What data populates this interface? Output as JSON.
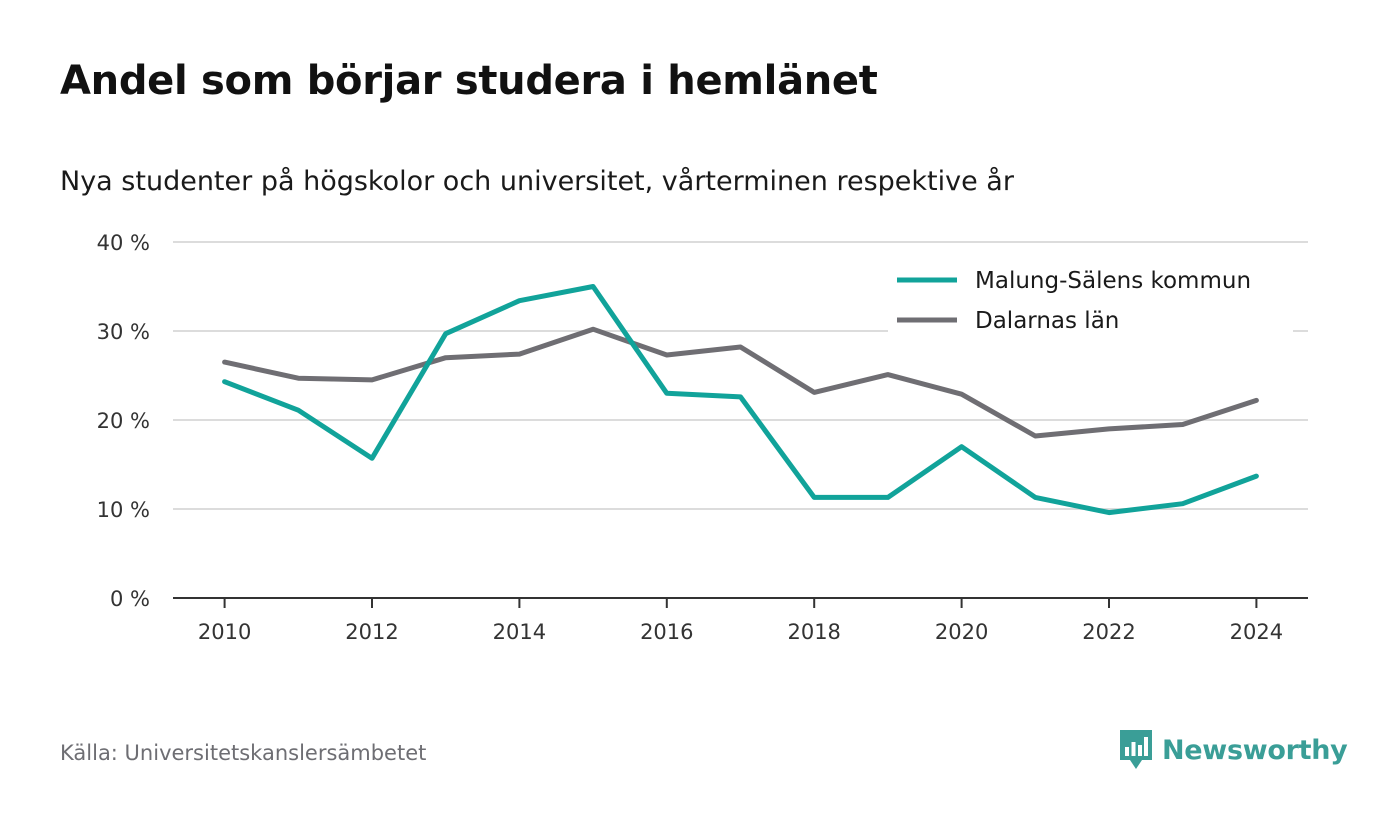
{
  "chart_data": {
    "type": "line",
    "title": "Andel som börjar studera i hemlänet",
    "subtitle": "Nya studenter på högskolor och universitet, vårterminen respektive år",
    "x": [
      2010,
      2011,
      2012,
      2013,
      2014,
      2015,
      2016,
      2017,
      2018,
      2019,
      2020,
      2021,
      2022,
      2023,
      2024
    ],
    "x_ticks": [
      2010,
      2012,
      2014,
      2016,
      2018,
      2020,
      2022,
      2024
    ],
    "x_tick_labels": [
      "2010",
      "2012",
      "2014",
      "2016",
      "2018",
      "2020",
      "2022",
      "2024"
    ],
    "y_ticks": [
      0,
      10,
      20,
      30,
      40
    ],
    "y_tick_labels": [
      "0 %",
      "10 %",
      "20 %",
      "30 %",
      "40 %"
    ],
    "ylim": [
      0,
      40
    ],
    "xlim": [
      2009.3,
      2024.7
    ],
    "grid": "horizontal",
    "legend_position": "top-right",
    "series": [
      {
        "name": "Malung-Sälens kommun",
        "color": "#11a39a",
        "values": [
          24.3,
          21.1,
          15.7,
          29.7,
          33.4,
          35.0,
          23.0,
          22.6,
          11.3,
          11.3,
          17.0,
          11.3,
          9.6,
          10.6,
          13.7
        ]
      },
      {
        "name": "Dalarnas län",
        "color": "#6f6e73",
        "values": [
          26.5,
          24.7,
          24.5,
          27.0,
          27.4,
          30.2,
          27.3,
          28.2,
          23.1,
          25.1,
          22.9,
          18.2,
          19.0,
          19.5,
          22.2
        ]
      }
    ]
  },
  "source": "Källa: Universitetskanslersämbetet",
  "brand": {
    "name": "Newsworthy",
    "color": "#3a9e97",
    "icon": "newsworthy-logo-icon"
  },
  "colors": {
    "gridline": "#dcdcdc",
    "axis": "#333333"
  }
}
